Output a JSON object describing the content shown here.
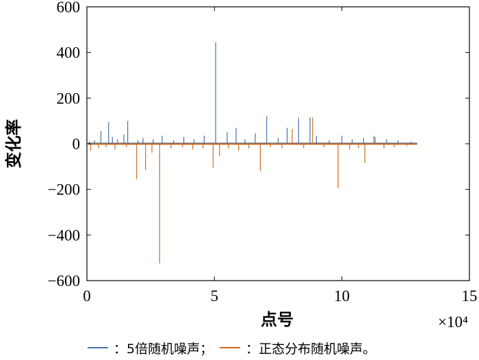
{
  "chart_data": {
    "type": "line",
    "xlabel": "点号",
    "ylabel": "变化率",
    "x_multiplier": "×10⁴",
    "xlim": [
      0,
      15
    ],
    "ylim": [
      -600,
      600
    ],
    "xticks": [
      0,
      5,
      10,
      15
    ],
    "yticks": [
      600,
      400,
      200,
      0,
      -200,
      -400,
      -600
    ],
    "ytick_labels": [
      "600",
      "400",
      "200",
      "0",
      "−200",
      "−400",
      "−600"
    ],
    "grid": false,
    "legend_position": "bottom",
    "colors": {
      "series1": "#4a6fa5",
      "series2": "#d2691e"
    },
    "series": [
      {
        "name": "：5倍随机噪声；",
        "x": [
          0.1,
          0.3,
          0.55,
          0.85,
          1.0,
          1.2,
          1.45,
          1.6,
          2.0,
          2.2,
          2.6,
          2.95,
          3.4,
          3.8,
          4.2,
          4.6,
          5.05,
          5.5,
          5.85,
          6.2,
          6.6,
          7.05,
          7.5,
          7.85,
          8.3,
          8.75,
          9.0,
          9.5,
          10.0,
          10.4,
          10.85,
          11.3,
          11.75,
          12.2,
          12.7
        ],
        "y": [
          10,
          15,
          55,
          95,
          30,
          20,
          40,
          100,
          15,
          25,
          20,
          35,
          15,
          30,
          20,
          35,
          445,
          50,
          70,
          20,
          45,
          120,
          25,
          70,
          115,
          115,
          35,
          15,
          35,
          20,
          25,
          30,
          20,
          15,
          10
        ]
      },
      {
        "name": "：正态分布随机噪声。",
        "x": [
          0.15,
          0.45,
          0.75,
          1.1,
          1.55,
          1.95,
          2.3,
          2.55,
          2.85,
          3.3,
          3.75,
          4.15,
          4.55,
          4.95,
          5.2,
          5.55,
          5.95,
          6.35,
          6.8,
          7.2,
          7.65,
          8.05,
          8.5,
          8.85,
          9.3,
          9.85,
          10.3,
          10.65,
          10.9,
          11.25,
          11.65,
          12.05,
          12.55
        ],
        "y": [
          -30,
          -20,
          -15,
          -25,
          -15,
          -155,
          -115,
          -40,
          -525,
          -20,
          -15,
          -25,
          -20,
          -105,
          -55,
          -20,
          -30,
          -20,
          -120,
          -15,
          -20,
          65,
          -20,
          115,
          -15,
          -195,
          -25,
          -20,
          -85,
          35,
          -20,
          -15,
          -10
        ]
      }
    ]
  }
}
